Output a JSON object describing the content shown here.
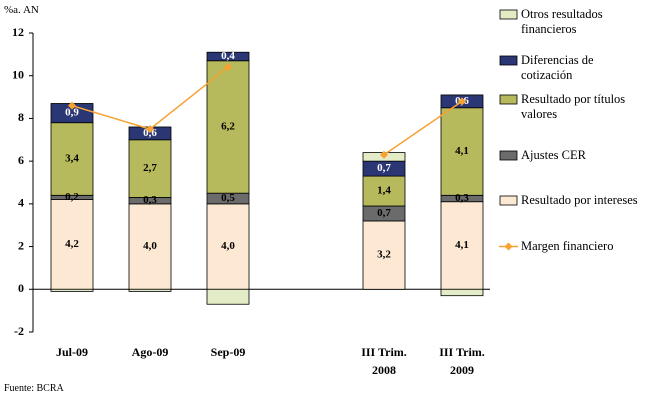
{
  "chart_data": {
    "type": "bar",
    "y_label": "%a. AN",
    "source": "Fuente: BCRA",
    "categories": [
      "Jul-09",
      "Ago-09",
      "Sep-09",
      null,
      "III Trim. 2008",
      "III Trim. 2009"
    ],
    "series": [
      {
        "name": "Resultado por intereses",
        "color": "#fde9d3",
        "values": [
          4.2,
          4.0,
          4.0,
          null,
          3.2,
          4.1
        ],
        "value_labels": [
          "4,2",
          "4,0",
          "4,0",
          null,
          "3,2",
          "4,1"
        ]
      },
      {
        "name": "Ajustes CER",
        "color": "#6b6b6b",
        "values": [
          0.2,
          0.3,
          0.5,
          null,
          0.7,
          0.3
        ],
        "value_labels": [
          "0,2",
          "0,3",
          "0,5",
          null,
          "0,7",
          "0,3"
        ]
      },
      {
        "name": "Resultado por títulos valores",
        "color": "#b6b95c",
        "values": [
          3.4,
          2.7,
          6.2,
          null,
          1.4,
          4.1
        ],
        "value_labels": [
          "3,4",
          "2,7",
          "6,2",
          null,
          "1,4",
          "4,1"
        ]
      },
      {
        "name": "Diferencias de cotización",
        "color": "#2b3674",
        "values": [
          0.9,
          0.6,
          0.4,
          null,
          0.7,
          0.6
        ],
        "value_labels": [
          "0,9",
          "0,6",
          "0,4",
          null,
          "0,7",
          "0,6"
        ]
      },
      {
        "name": "Otros resultados financieros",
        "color": "#e3ecc6",
        "values": [
          -0.1,
          -0.1,
          -0.7,
          null,
          0.4,
          -0.3
        ]
      }
    ],
    "line": {
      "name": "Margen financiero",
      "color": "#f7a231",
      "values": [
        8.6,
        7.5,
        10.4,
        null,
        6.3,
        8.8
      ]
    },
    "ylim": [
      -2,
      12
    ],
    "yticks": [
      -2,
      0,
      2,
      4,
      6,
      8,
      10,
      12
    ]
  }
}
